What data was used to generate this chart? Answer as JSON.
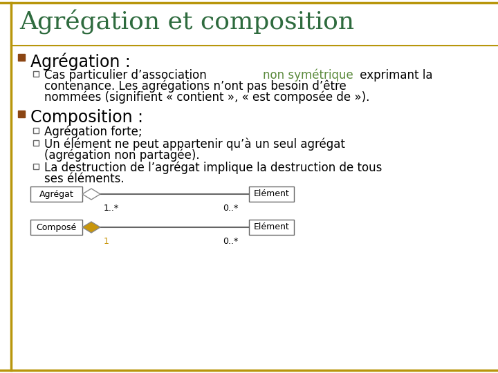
{
  "title": "Agrégation et composition",
  "title_color": "#2e6b3e",
  "title_fontsize": 26,
  "bg_color": "#ffffff",
  "border_color": "#b8960c",
  "bullet_color": "#8b4513",
  "section1_title": "Agrégation :",
  "section1_fontsize": 17,
  "section1_text1_before": "Cas particulier d’association ",
  "section1_text1_highlight": "non symétrique",
  "section1_highlight_color": "#5b8a3c",
  "section1_text1_after": " exprimant la",
  "section1_text2": "contenance. Les agrégations n’ont pas besoin d’être",
  "section1_text3": "nommées (signifient « contient », « est composée de »).",
  "section2_title": "Composition :",
  "section2_fontsize": 17,
  "sub1": "Agrégation forte;",
  "sub2_line1": "Un élément ne peut appartenir qu’à un seul agrégat",
  "sub2_line2": "(agrégation non partagée).",
  "sub3_line1": "La destruction de l’agrégat implique la destruction de tous",
  "sub3_line2": "ses éléments.",
  "diag1_left_label": "Agrégat",
  "diag1_right_label": "Elément",
  "diag1_mult_left": "1..*",
  "diag1_mult_right": "0..*",
  "diag2_left_label": "Composé",
  "diag2_right_label": "Elément",
  "diag2_mult_left": "1",
  "diag2_mult_right": "0..*",
  "diamond_open_color": "#ffffff",
  "diamond_filled_color": "#c8960c",
  "diamond_edge_color": "#888888",
  "box_edge_color": "#666666",
  "text_fontsize": 12,
  "diag_fontsize": 9,
  "mult_color_diag1": "#000000",
  "mult_color_diag2_left": "#c8960c",
  "mult_color_diag2_right": "#000000"
}
